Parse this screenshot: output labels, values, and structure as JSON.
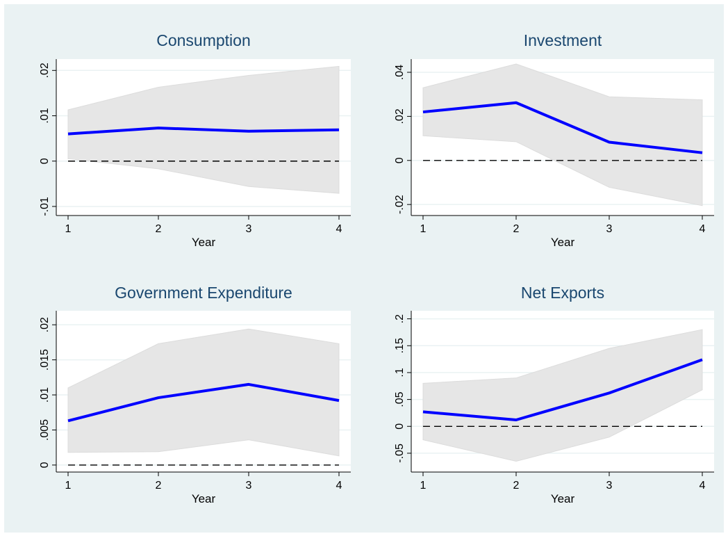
{
  "chart_data": [
    {
      "type": "line",
      "title": "Consumption",
      "xlabel": "Year",
      "ylabel": "",
      "x": [
        1,
        2,
        3,
        4
      ],
      "xticks": [
        "1",
        "2",
        "3",
        "4"
      ],
      "ylim": [
        -0.012,
        0.0225
      ],
      "yticks": [
        -0.01,
        0,
        0.01,
        0.02
      ],
      "ytick_labels": [
        "-.01",
        "0",
        ".01",
        ".02"
      ],
      "series": [
        {
          "values": [
            0.006,
            0.0073,
            0.0066,
            0.0069
          ],
          "color": "#0000ff"
        }
      ],
      "band": {
        "lower": [
          0.0005,
          -0.0017,
          -0.0056,
          -0.0071
        ],
        "upper": [
          0.0113,
          0.0163,
          0.0189,
          0.0209
        ],
        "color": "#e6e6e6"
      },
      "reference_line": 0,
      "grid": true
    },
    {
      "type": "line",
      "title": "Investment",
      "xlabel": "Year",
      "ylabel": "",
      "x": [
        1,
        2,
        3,
        4
      ],
      "xticks": [
        "1",
        "2",
        "3",
        "4"
      ],
      "ylim": [
        -0.025,
        0.046
      ],
      "yticks": [
        -0.02,
        0,
        0.02,
        0.04
      ],
      "ytick_labels": [
        "-.02",
        "0",
        ".02",
        ".04"
      ],
      "series": [
        {
          "values": [
            0.022,
            0.0262,
            0.0083,
            0.0035
          ],
          "color": "#0000ff"
        }
      ],
      "band": {
        "lower": [
          0.0112,
          0.0085,
          -0.0122,
          -0.0205
        ],
        "upper": [
          0.033,
          0.0438,
          0.0289,
          0.0275
        ],
        "color": "#e6e6e6"
      },
      "reference_line": 0,
      "grid": true
    },
    {
      "type": "line",
      "title": "Government Expenditure",
      "xlabel": "Year",
      "ylabel": "",
      "x": [
        1,
        2,
        3,
        4
      ],
      "xticks": [
        "1",
        "2",
        "3",
        "4"
      ],
      "ylim": [
        -0.001,
        0.022
      ],
      "yticks": [
        0,
        0.005,
        0.01,
        0.015,
        0.02
      ],
      "ytick_labels": [
        "0",
        ".005",
        ".01",
        ".015",
        ".02"
      ],
      "series": [
        {
          "values": [
            0.0063,
            0.0096,
            0.0115,
            0.0092
          ],
          "color": "#0000ff"
        }
      ],
      "band": {
        "lower": [
          0.0018,
          0.0019,
          0.0036,
          0.0013
        ],
        "upper": [
          0.011,
          0.0173,
          0.0194,
          0.0173
        ],
        "color": "#e6e6e6"
      },
      "reference_line": 0,
      "grid": true
    },
    {
      "type": "line",
      "title": "Net Exports",
      "xlabel": "Year",
      "ylabel": "",
      "x": [
        1,
        2,
        3,
        4
      ],
      "xticks": [
        "1",
        "2",
        "3",
        "4"
      ],
      "ylim": [
        -0.085,
        0.215
      ],
      "yticks": [
        -0.05,
        0,
        0.05,
        0.1,
        0.15,
        0.2
      ],
      "ytick_labels": [
        "-.05",
        "0",
        ".05",
        ".1",
        ".15",
        ".2"
      ],
      "series": [
        {
          "values": [
            0.027,
            0.012,
            0.062,
            0.124
          ],
          "color": "#0000ff"
        }
      ],
      "band": {
        "lower": [
          -0.025,
          -0.065,
          -0.02,
          0.068
        ],
        "upper": [
          0.08,
          0.09,
          0.145,
          0.18
        ],
        "color": "#e6e6e6"
      },
      "reference_line": 0,
      "grid": true
    }
  ]
}
